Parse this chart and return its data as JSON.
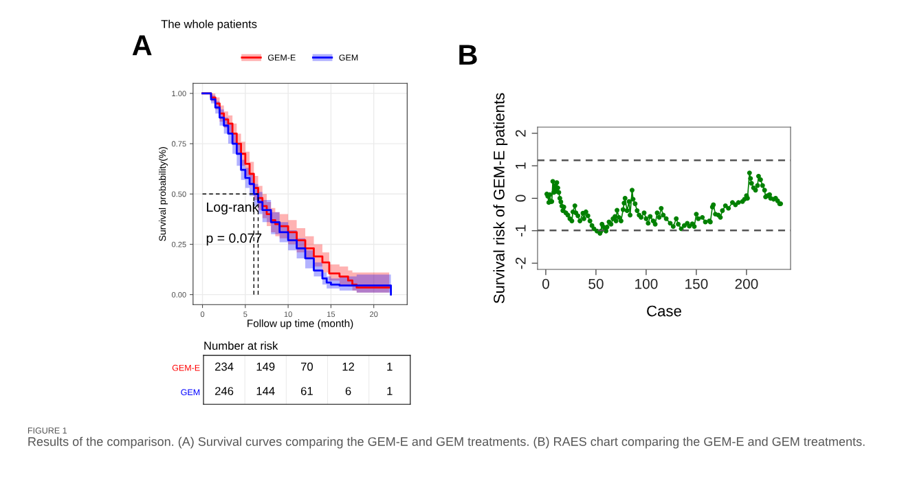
{
  "chart_data": [
    {
      "type": "step",
      "title": "The whole patients",
      "xlabel": "Follow up time (month)",
      "ylabel": "Survival probability(%)",
      "xlim": [
        -1.1,
        23.9
      ],
      "ylim": [
        -0.05,
        1.05
      ],
      "xticks": [
        0,
        5,
        10,
        15,
        20
      ],
      "yticks": [
        {
          "value": 0,
          "label": "0.00"
        },
        {
          "value": 0.25,
          "label": "0.25"
        },
        {
          "value": 0.5,
          "label": "0.50"
        },
        {
          "value": 0.75,
          "label": "0.75"
        },
        {
          "value": 1,
          "label": "1.00"
        }
      ],
      "grid": true,
      "legend": "top",
      "annotations": [
        "A",
        "Log-rank",
        "p = 0.077"
      ],
      "ref_lines": [
        {
          "axis": "y",
          "value": 0.5,
          "color": "#000000",
          "line_style": "dashed"
        },
        {
          "axis": "x",
          "value": 6.0,
          "color": "#000000",
          "line_style": "dashed"
        },
        {
          "axis": "x",
          "value": 6.5,
          "color": "#000000",
          "line_style": "dashed"
        }
      ],
      "series": [
        {
          "name": "GEM-E",
          "color": "#ff0000",
          "x": [
            0,
            0.5,
            1,
            1.5,
            2,
            2.5,
            3,
            3.5,
            4,
            4.5,
            5,
            5.5,
            6,
            6.5,
            7,
            7.5,
            8,
            8.5,
            9,
            10,
            11,
            12,
            13,
            14,
            14.8,
            16,
            17,
            17.5,
            18,
            21.8
          ],
          "values": [
            1,
            1,
            0.98,
            0.95,
            0.9,
            0.87,
            0.85,
            0.8,
            0.75,
            0.7,
            0.65,
            0.6,
            0.53,
            0.48,
            0.44,
            0.4,
            0.37,
            0.35,
            0.34,
            0.31,
            0.27,
            0.23,
            0.19,
            0.16,
            0.105,
            0.09,
            0.07,
            0.05,
            0.035,
            0.035
          ],
          "upper": [
            1,
            1,
            1,
            0.98,
            0.94,
            0.91,
            0.89,
            0.85,
            0.8,
            0.76,
            0.71,
            0.66,
            0.59,
            0.54,
            0.5,
            0.46,
            0.43,
            0.41,
            0.4,
            0.37,
            0.33,
            0.29,
            0.25,
            0.21,
            0.15,
            0.14,
            0.12,
            0.11,
            0.11,
            0.11
          ],
          "lower": [
            1,
            1,
            0.96,
            0.92,
            0.86,
            0.83,
            0.8,
            0.75,
            0.7,
            0.64,
            0.59,
            0.54,
            0.47,
            0.42,
            0.38,
            0.34,
            0.31,
            0.29,
            0.28,
            0.25,
            0.21,
            0.18,
            0.14,
            0.11,
            0.07,
            0.05,
            0.04,
            0.02,
            0.01,
            0.01
          ]
        },
        {
          "name": "GEM",
          "color": "#0000ff",
          "x": [
            0,
            0.5,
            1,
            1.5,
            2,
            2.5,
            3,
            3.5,
            4,
            4.5,
            5,
            5.5,
            6,
            6.5,
            7,
            8,
            9,
            10,
            11,
            12,
            13,
            14,
            14.5,
            15,
            16,
            18,
            22
          ],
          "values": [
            1,
            1,
            0.97,
            0.93,
            0.88,
            0.84,
            0.8,
            0.75,
            0.7,
            0.62,
            0.58,
            0.55,
            0.5,
            0.46,
            0.42,
            0.36,
            0.31,
            0.27,
            0.23,
            0.18,
            0.12,
            0.08,
            0.06,
            0.05,
            0.045,
            0.045,
            0
          ],
          "upper": [
            1,
            1,
            0.99,
            0.96,
            0.92,
            0.88,
            0.85,
            0.8,
            0.75,
            0.67,
            0.63,
            0.6,
            0.55,
            0.51,
            0.47,
            0.41,
            0.36,
            0.32,
            0.28,
            0.22,
            0.16,
            0.11,
            0.09,
            0.08,
            0.09,
            0.1,
            0.1
          ],
          "lower": [
            1,
            1,
            0.95,
            0.9,
            0.84,
            0.8,
            0.75,
            0.7,
            0.64,
            0.57,
            0.53,
            0.49,
            0.44,
            0.4,
            0.36,
            0.3,
            0.26,
            0.22,
            0.18,
            0.13,
            0.09,
            0.05,
            0.03,
            0.03,
            0.02,
            0.01,
            0.01
          ]
        }
      ]
    },
    {
      "type": "line",
      "xlabel": "Case",
      "ylabel": "Survival risk of GEM-E patients",
      "xlim": [
        -8.2,
        243.9
      ],
      "ylim": [
        -2.19,
        2.19
      ],
      "xticks": [
        0,
        50,
        100,
        150,
        200
      ],
      "yticks": [
        -2,
        -1,
        0,
        1,
        2
      ],
      "marker": "circle",
      "line_style": "solid",
      "annotations": [
        "B"
      ],
      "ref_lines": [
        {
          "axis": "y",
          "value": 1.17,
          "color": "#555555",
          "line_style": "dashed"
        },
        {
          "axis": "y",
          "value": -0.99,
          "color": "#555555",
          "line_style": "dashed"
        }
      ],
      "series": [
        {
          "color": "#008000",
          "x": [
            1,
            2,
            3,
            4,
            5,
            6,
            7,
            8,
            9,
            10,
            11,
            12,
            13,
            14,
            15,
            16,
            17,
            18,
            20,
            22,
            24,
            26,
            27,
            29,
            30,
            32,
            34,
            37,
            38,
            40,
            42,
            44,
            46,
            48,
            51,
            54,
            55,
            56,
            57,
            59,
            60,
            61,
            63,
            65,
            67,
            69,
            70,
            71,
            73,
            75,
            77,
            78,
            79,
            81,
            83,
            84,
            86,
            87,
            89,
            91,
            93,
            95,
            98,
            100,
            102,
            104,
            107,
            109,
            111,
            113,
            115,
            117,
            120,
            124,
            127,
            130,
            132,
            135,
            138,
            141,
            143,
            146,
            148,
            150,
            152,
            156,
            159,
            163,
            164,
            166,
            167,
            169,
            172,
            174,
            176,
            179,
            182,
            186,
            189,
            192,
            196,
            198,
            200,
            201,
            203,
            204,
            205,
            207,
            209,
            211,
            212,
            214,
            216,
            218,
            219,
            221,
            223,
            224,
            227,
            229,
            231,
            233,
            234
          ],
          "values": [
            0.13,
            0.06,
            -0.13,
            0.11,
            -0.1,
            -0.1,
            0.52,
            0.18,
            0.39,
            0.21,
            0.48,
            0.32,
            0.18,
            0,
            -0.11,
            -0.24,
            -0.38,
            -0.27,
            -0.45,
            -0.52,
            -0.63,
            -0.7,
            -0.42,
            -0.23,
            -0.45,
            -0.54,
            -0.7,
            -0.46,
            -0.63,
            -0.42,
            -0.54,
            -0.7,
            -0.84,
            -0.94,
            -1.01,
            -1.08,
            -1.01,
            -0.8,
            -0.87,
            -0.96,
            -1.01,
            -0.89,
            -0.73,
            -0.8,
            -0.63,
            -0.56,
            -0.7,
            -0.37,
            -0.59,
            -0.7,
            -0.35,
            -0.15,
            0,
            -0.38,
            -0.1,
            -0.52,
            0.25,
            -0.03,
            -0.17,
            -0.38,
            -0.52,
            -0.59,
            -0.45,
            -0.63,
            -0.77,
            -0.56,
            -0.7,
            -0.8,
            -0.45,
            -0.59,
            -0.31,
            -0.52,
            -0.63,
            -0.77,
            -0.87,
            -0.63,
            -0.8,
            -0.94,
            -0.84,
            -0.77,
            -0.86,
            -0.79,
            -0.87,
            -0.49,
            -0.63,
            -0.59,
            -0.73,
            -0.7,
            -0.73,
            -0.27,
            -0.2,
            -0.49,
            -0.52,
            -0.59,
            -0.38,
            -0.23,
            -0.31,
            -0.13,
            -0.2,
            -0.13,
            -0.1,
            -0.03,
            0.08,
            0,
            0.78,
            0.61,
            0.46,
            0.32,
            0.25,
            0.39,
            0.68,
            0.57,
            0.39,
            0.25,
            0.04,
            0.08,
            0.11,
            0,
            -0.03,
            0,
            -0.08,
            -0.17,
            -0.17
          ]
        }
      ]
    },
    {
      "type": "heatmap",
      "title": "Number at risk",
      "categories": [
        null,
        null,
        null,
        null,
        null
      ],
      "y_categories": [
        "GEM-E",
        "GEM"
      ],
      "colors": [
        "#ff0000",
        "#0000ff"
      ],
      "data_labels": true,
      "cells": [
        [
          234,
          149,
          70,
          12,
          1
        ],
        [
          246,
          144,
          61,
          6,
          1
        ]
      ],
      "annotations": [
        "FIGURE 1",
        "Results of the comparison. (A) Survival curves comparing the GEM-E and GEM treatments. (B) RAES chart comparing the GEM-E and GEM treatments."
      ]
    }
  ]
}
